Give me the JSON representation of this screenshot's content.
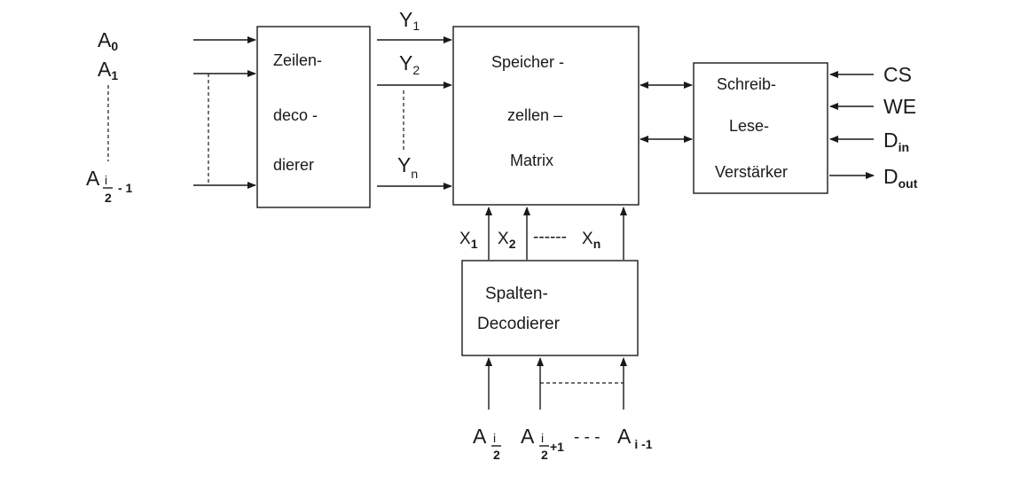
{
  "blocks": {
    "row_decoder": [
      "Zeilen-",
      "deco -",
      "dierer"
    ],
    "memory_matrix": [
      "Speicher  -",
      "zellen –",
      "Matrix"
    ],
    "rw_amplifier": [
      "Schreib-",
      "Lese-",
      "Verstärker"
    ],
    "column_decoder": [
      "Spalten-",
      "Decodierer"
    ]
  },
  "address_inputs": {
    "a0": {
      "base": "A",
      "sub": "0"
    },
    "a1": {
      "base": "A",
      "sub": "1"
    },
    "a_half_minus1": {
      "base": "A",
      "frac_num": "i",
      "frac_den": "2",
      "suffix": "- 1"
    }
  },
  "row_lines": {
    "y1": {
      "base": "Y",
      "sub": "1"
    },
    "y2": {
      "base": "Y",
      "sub": "2"
    },
    "yn": {
      "base": "Y",
      "sub": "n"
    }
  },
  "column_lines": {
    "x1": {
      "base": "X",
      "sub": "1"
    },
    "x2": {
      "base": "X",
      "sub": "2"
    },
    "xn": {
      "base": "X",
      "sub": "n"
    },
    "dash_text": "------"
  },
  "control_signals": {
    "cs": "CS",
    "we": "WE",
    "din": {
      "base": "D",
      "sub": "in"
    },
    "dout": {
      "base": "D",
      "sub": "out"
    }
  },
  "column_inputs": {
    "a_half": {
      "base": "A",
      "frac_num": "i",
      "frac_den": "2"
    },
    "a_half_plus1": {
      "base": "A",
      "frac_num": "i",
      "frac_den": "2",
      "suffix": "+1"
    },
    "dashes": "- - -",
    "a_i_minus1": {
      "base": "A",
      "sub": "i -1"
    }
  }
}
